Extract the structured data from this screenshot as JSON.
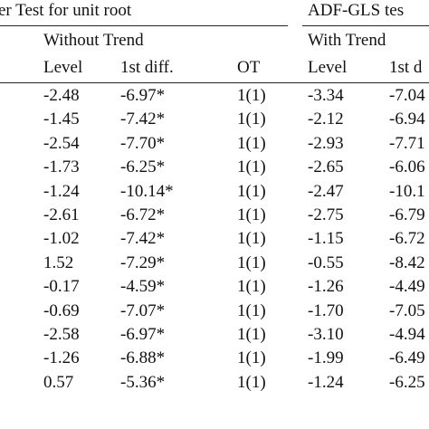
{
  "header": {
    "left": "er Test for unit root",
    "right": "ADF-GLS tes"
  },
  "groups": [
    "Without Trend",
    "With Trend"
  ],
  "columns": [
    "Level",
    "1st diff.",
    "OT",
    "Level",
    "1st d"
  ],
  "table": {
    "rows": [
      [
        "-2.48",
        "-6.97*",
        "1(1)",
        "-3.34",
        "-7.04"
      ],
      [
        "-1.45",
        "-7.42*",
        "1(1)",
        "-2.12",
        "-6.94"
      ],
      [
        "-2.54",
        "-7.70*",
        "1(1)",
        "-2.93",
        "-7.71"
      ],
      [
        "-1.73",
        "-6.25*",
        "1(1)",
        "-2.65",
        "-6.06"
      ],
      [
        "-1.24",
        "-10.14*",
        "1(1)",
        "-2.47",
        "-10.1"
      ],
      [
        "-2.61",
        "-6.72*",
        "1(1)",
        "-2.75",
        "-6.79"
      ],
      [
        "-1.02",
        "-7.42*",
        "1(1)",
        "-1.15",
        "-6.72"
      ],
      [
        "1.52",
        "-7.29*",
        "1(1)",
        "-0.55",
        "-8.42"
      ],
      [
        "-0.17",
        "-4.59*",
        "1(1)",
        "-1.26",
        "-4.49"
      ],
      [
        "-0.69",
        "-7.07*",
        "1(1)",
        "-1.70",
        "-7.05"
      ],
      [
        "-2.58",
        "-6.97*",
        "1(1)",
        "-3.10",
        "-4.94"
      ],
      [
        "-1.26",
        "-6.88*",
        "1(1)",
        "-1.99",
        "-6.49"
      ],
      [
        "0.57",
        "-5.36*",
        "1(1)",
        "-1.24",
        "-6.25"
      ]
    ]
  }
}
